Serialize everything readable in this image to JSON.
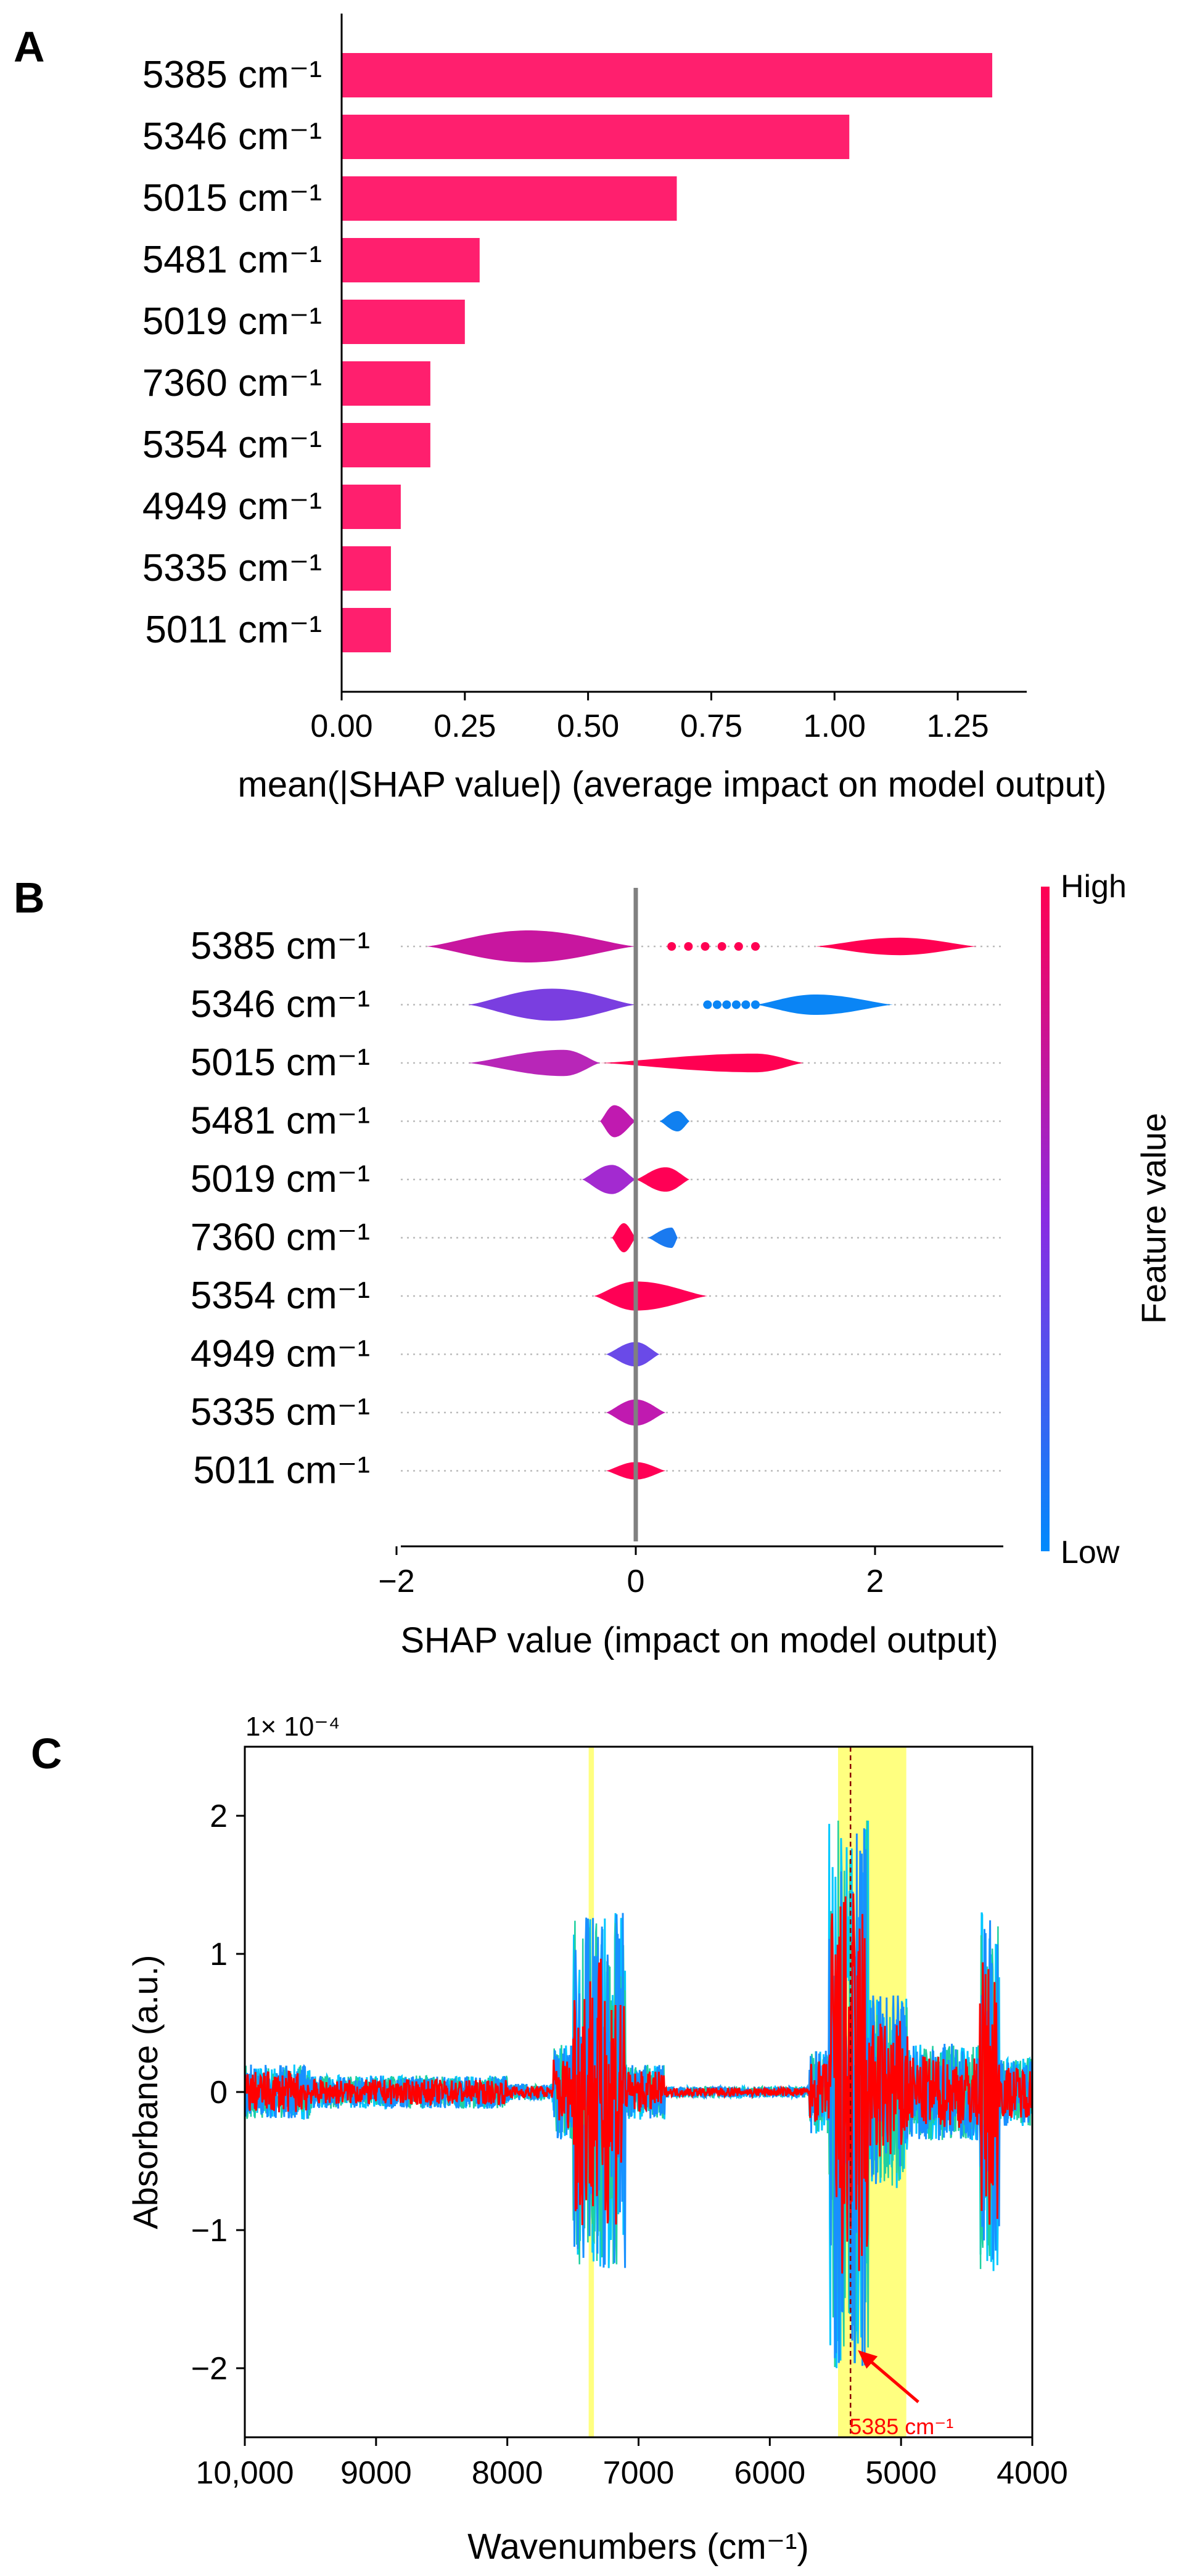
{
  "panels": {
    "a": {
      "letter": "A"
    },
    "b": {
      "letter": "B"
    },
    "c": {
      "letter": "C"
    }
  },
  "colors": {
    "bar": "#ff1f6e",
    "high": "#ff0052",
    "low": "#008afc",
    "mid": "#b31aff",
    "highlight": "#ffff80",
    "spectrum_red": "#ff0000",
    "annotation": "#ff0000"
  },
  "chart_data": [
    {
      "id": "A",
      "type": "bar",
      "orientation": "horizontal",
      "title": "",
      "categories": [
        "5385 cm⁻¹",
        "5346 cm⁻¹",
        "5015 cm⁻¹",
        "5481 cm⁻¹",
        "5019 cm⁻¹",
        "7360 cm⁻¹",
        "5354 cm⁻¹",
        "4949 cm⁻¹",
        "5335 cm⁻¹",
        "5011 cm⁻¹"
      ],
      "values": [
        1.32,
        1.03,
        0.68,
        0.28,
        0.25,
        0.18,
        0.18,
        0.12,
        0.1,
        0.1
      ],
      "xlabel": "mean(|SHAP value|) (average impact on model output)",
      "xlim": [
        0,
        1.39
      ],
      "xticks": [
        0.0,
        0.25,
        0.5,
        0.75,
        1.0,
        1.25
      ],
      "xtick_labels": [
        "0.00",
        "0.25",
        "0.50",
        "0.75",
        "1.00",
        "1.25"
      ]
    },
    {
      "id": "B",
      "type": "violin",
      "title": "",
      "categories": [
        "5385 cm⁻¹",
        "5346 cm⁻¹",
        "5015 cm⁻¹",
        "5481 cm⁻¹",
        "5019 cm⁻¹",
        "7360 cm⁻¹",
        "5354 cm⁻¹",
        "4949 cm⁻¹",
        "5335 cm⁻¹",
        "5011 cm⁻¹"
      ],
      "xlabel": "SHAP value (impact on model output)",
      "xlim": [
        -2.0,
        3.0
      ],
      "xticks": [
        -2,
        0,
        2
      ],
      "xtick_labels": [
        "−2",
        "0",
        "2"
      ],
      "colorbar": {
        "label": "Feature value",
        "high": "High",
        "low": "Low"
      },
      "features": [
        {
          "shapes": [
            {
              "range": [
                -1.75,
                0.0
              ],
              "center": -0.9,
              "width": 0.55,
              "color": "#c8169f"
            },
            {
              "range": [
                1.5,
                2.85
              ],
              "center": 2.2,
              "width": 0.3,
              "color": "#ff0052"
            }
          ],
          "dots": {
            "range": [
              0.3,
              1.0
            ],
            "color": "#ff0052"
          }
        },
        {
          "shapes": [
            {
              "range": [
                -1.4,
                0.0
              ],
              "center": -0.7,
              "width": 0.55,
              "color": "#7a3ee0"
            },
            {
              "range": [
                1.0,
                2.15
              ],
              "center": 1.5,
              "width": 0.35,
              "color": "#0a85f5"
            }
          ],
          "dots": {
            "range": [
              0.6,
              1.0
            ],
            "color": "#0a85f5"
          }
        },
        {
          "shapes": [
            {
              "range": [
                -1.4,
                -0.3
              ],
              "center": -0.6,
              "width": 0.45,
              "color": "#b826b8"
            },
            {
              "range": [
                -0.3,
                1.4
              ],
              "center": 1.0,
              "width": 0.32,
              "color": "#ff0052"
            }
          ]
        },
        {
          "shapes": [
            {
              "range": [
                -0.3,
                0.0
              ],
              "center": -0.18,
              "width": 0.55,
              "color": "#c01ab0"
            },
            {
              "range": [
                0.2,
                0.45
              ],
              "center": 0.35,
              "width": 0.35,
              "color": "#1080f0"
            }
          ]
        },
        {
          "shapes": [
            {
              "range": [
                -0.45,
                0.0
              ],
              "center": -0.2,
              "width": 0.5,
              "color": "#a32ad0"
            },
            {
              "range": [
                0.0,
                0.45
              ],
              "center": 0.25,
              "width": 0.42,
              "color": "#ff0055"
            }
          ]
        },
        {
          "shapes": [
            {
              "range": [
                -0.2,
                0.0
              ],
              "center": -0.1,
              "width": 0.5,
              "color": "#ff0052"
            },
            {
              "range": [
                0.1,
                0.35
              ],
              "center": 0.3,
              "width": 0.35,
              "color": "#1a7af0"
            }
          ]
        },
        {
          "shapes": [
            {
              "range": [
                -0.35,
                0.6
              ],
              "center": 0.0,
              "width": 0.5,
              "color": "#ff0055"
            }
          ]
        },
        {
          "shapes": [
            {
              "range": [
                -0.25,
                0.2
              ],
              "center": 0.0,
              "width": 0.42,
              "color": "#6a4ae8"
            }
          ]
        },
        {
          "shapes": [
            {
              "range": [
                -0.25,
                0.25
              ],
              "center": 0.0,
              "width": 0.45,
              "color": "#c01ab0"
            }
          ]
        },
        {
          "shapes": [
            {
              "range": [
                -0.25,
                0.25
              ],
              "center": 0.0,
              "width": 0.3,
              "color": "#ff0055"
            }
          ]
        }
      ]
    },
    {
      "id": "C",
      "type": "line",
      "title": "",
      "xlabel": "Wavenumbers (cm⁻¹)",
      "ylabel": "Absorbance (a.u.)",
      "y_multiplier": "1× 10⁻⁴",
      "xlim": [
        10000,
        4000
      ],
      "ylim": [
        -2.5,
        2.5
      ],
      "xticks": [
        10000,
        9000,
        8000,
        7000,
        6000,
        5000,
        4000
      ],
      "xtick_labels": [
        "10,000",
        "9000",
        "8000",
        "7000",
        "6000",
        "5000",
        "4000"
      ],
      "yticks": [
        -2,
        -1,
        0,
        1,
        2
      ],
      "ytick_labels": [
        "−2",
        "−1",
        "0",
        "1",
        "2"
      ],
      "highlight_bands": [
        [
          7380,
          7340
        ],
        [
          5480,
          4960
        ]
      ],
      "marker_line": 5385,
      "annotation": {
        "text": "5385 cm⁻¹",
        "x": 5385,
        "y": -2.2
      },
      "regions": [
        {
          "from": 10000,
          "to": 9500,
          "amp": 0.2
        },
        {
          "from": 9500,
          "to": 8000,
          "amp": 0.12
        },
        {
          "from": 8000,
          "to": 7650,
          "amp": 0.06
        },
        {
          "from": 7650,
          "to": 7500,
          "amp": 0.35
        },
        {
          "from": 7500,
          "to": 7100,
          "amp": 1.3
        },
        {
          "from": 7100,
          "to": 6800,
          "amp": 0.2
        },
        {
          "from": 6800,
          "to": 5700,
          "amp": 0.04
        },
        {
          "from": 5700,
          "to": 5550,
          "amp": 0.3
        },
        {
          "from": 5550,
          "to": 5250,
          "amp": 2.0
        },
        {
          "from": 5250,
          "to": 4950,
          "amp": 0.7
        },
        {
          "from": 4950,
          "to": 4400,
          "amp": 0.35
        },
        {
          "from": 4400,
          "to": 4250,
          "amp": 1.3
        },
        {
          "from": 4250,
          "to": 4000,
          "amp": 0.25
        }
      ]
    }
  ]
}
